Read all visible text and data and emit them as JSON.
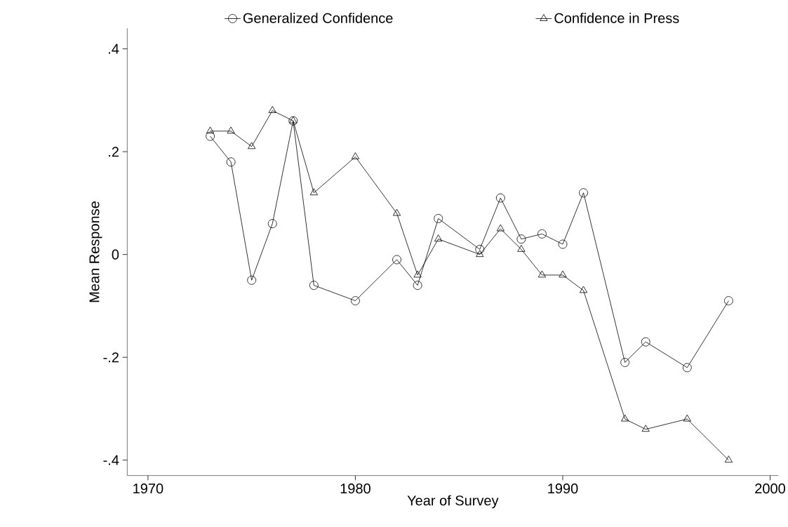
{
  "chart_data": {
    "type": "line",
    "xlabel": "Year of Survey",
    "ylabel": "Mean Response",
    "x": [
      1973,
      1974,
      1975,
      1976,
      1977,
      1978,
      1980,
      1982,
      1983,
      1984,
      1986,
      1987,
      1988,
      1989,
      1990,
      1991,
      1993,
      1994,
      1996,
      1998
    ],
    "series": [
      {
        "name": "Generalized Confidence",
        "color": "#000000",
        "marker": "circle",
        "values": [
          0.23,
          0.18,
          -0.05,
          0.06,
          0.26,
          -0.06,
          -0.09,
          -0.01,
          -0.06,
          0.07,
          0.01,
          0.11,
          0.03,
          0.04,
          0.02,
          0.12,
          -0.21,
          -0.17,
          -0.22,
          -0.09
        ]
      },
      {
        "name": "Confidence in Press",
        "color": "#000000",
        "marker": "triangle",
        "values": [
          0.24,
          0.24,
          0.21,
          0.28,
          0.26,
          0.12,
          0.19,
          0.08,
          -0.04,
          0.03,
          0.0,
          0.05,
          0.01,
          -0.04,
          -0.04,
          -0.07,
          -0.32,
          -0.34,
          -0.32,
          -0.4
        ]
      }
    ],
    "xlim": [
      1969,
      2000.4
    ],
    "ylim": [
      -0.43,
      0.44
    ],
    "xticks": [
      1970,
      1980,
      1990,
      2000
    ],
    "yticks": [
      {
        "value": -0.4,
        "label": "-.4"
      },
      {
        "value": -0.2,
        "label": "-.2"
      },
      0,
      {
        "value": 0.2,
        "label": ".2"
      },
      {
        "value": 0.4,
        "label": ".4"
      }
    ],
    "legend": "top",
    "grid": false,
    "line_style": "solid"
  }
}
